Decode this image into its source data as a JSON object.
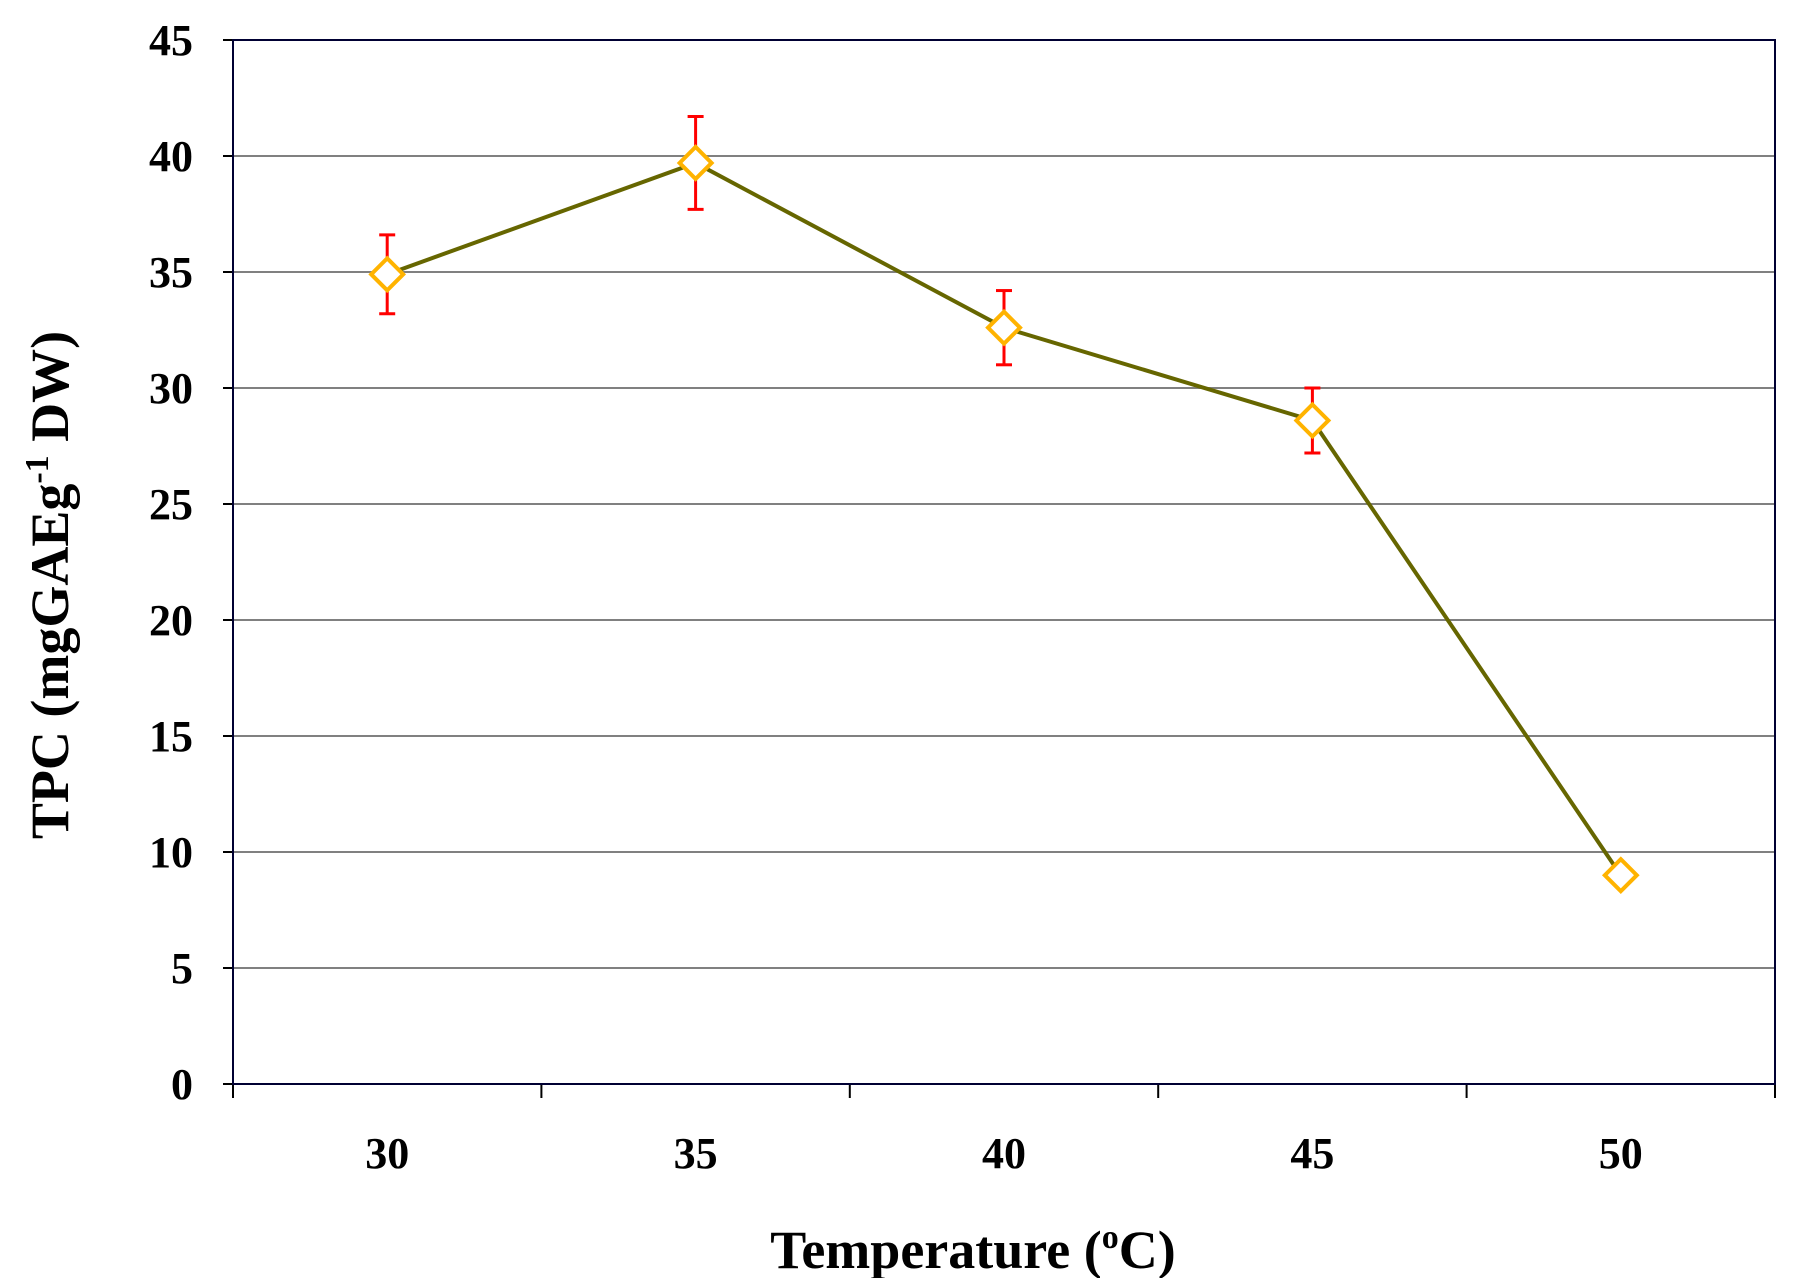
{
  "chart_data": {
    "type": "line",
    "title": "",
    "xlabel": "Temperature (°C)",
    "xlabel_main": "Temperature (",
    "xlabel_sup": "o",
    "xlabel_end": "C)",
    "ylabel_main": "TPC (mgGAEg",
    "ylabel_sup": "-1",
    "ylabel_end": " DW)",
    "categories": [
      "30",
      "35",
      "40",
      "45",
      "50"
    ],
    "values": [
      34.9,
      39.7,
      32.6,
      28.6,
      9.0
    ],
    "errors": [
      1.7,
      2.0,
      1.6,
      1.4,
      0.3
    ],
    "ylim": [
      0,
      45
    ],
    "yticks": [
      "0",
      "5",
      "10",
      "15",
      "20",
      "25",
      "30",
      "35",
      "40",
      "45"
    ],
    "grid": true,
    "colors": {
      "line": "#666600",
      "marker": "#FFB300",
      "error": "#FF0000",
      "grid": "#808080",
      "frame": "#000033"
    }
  }
}
